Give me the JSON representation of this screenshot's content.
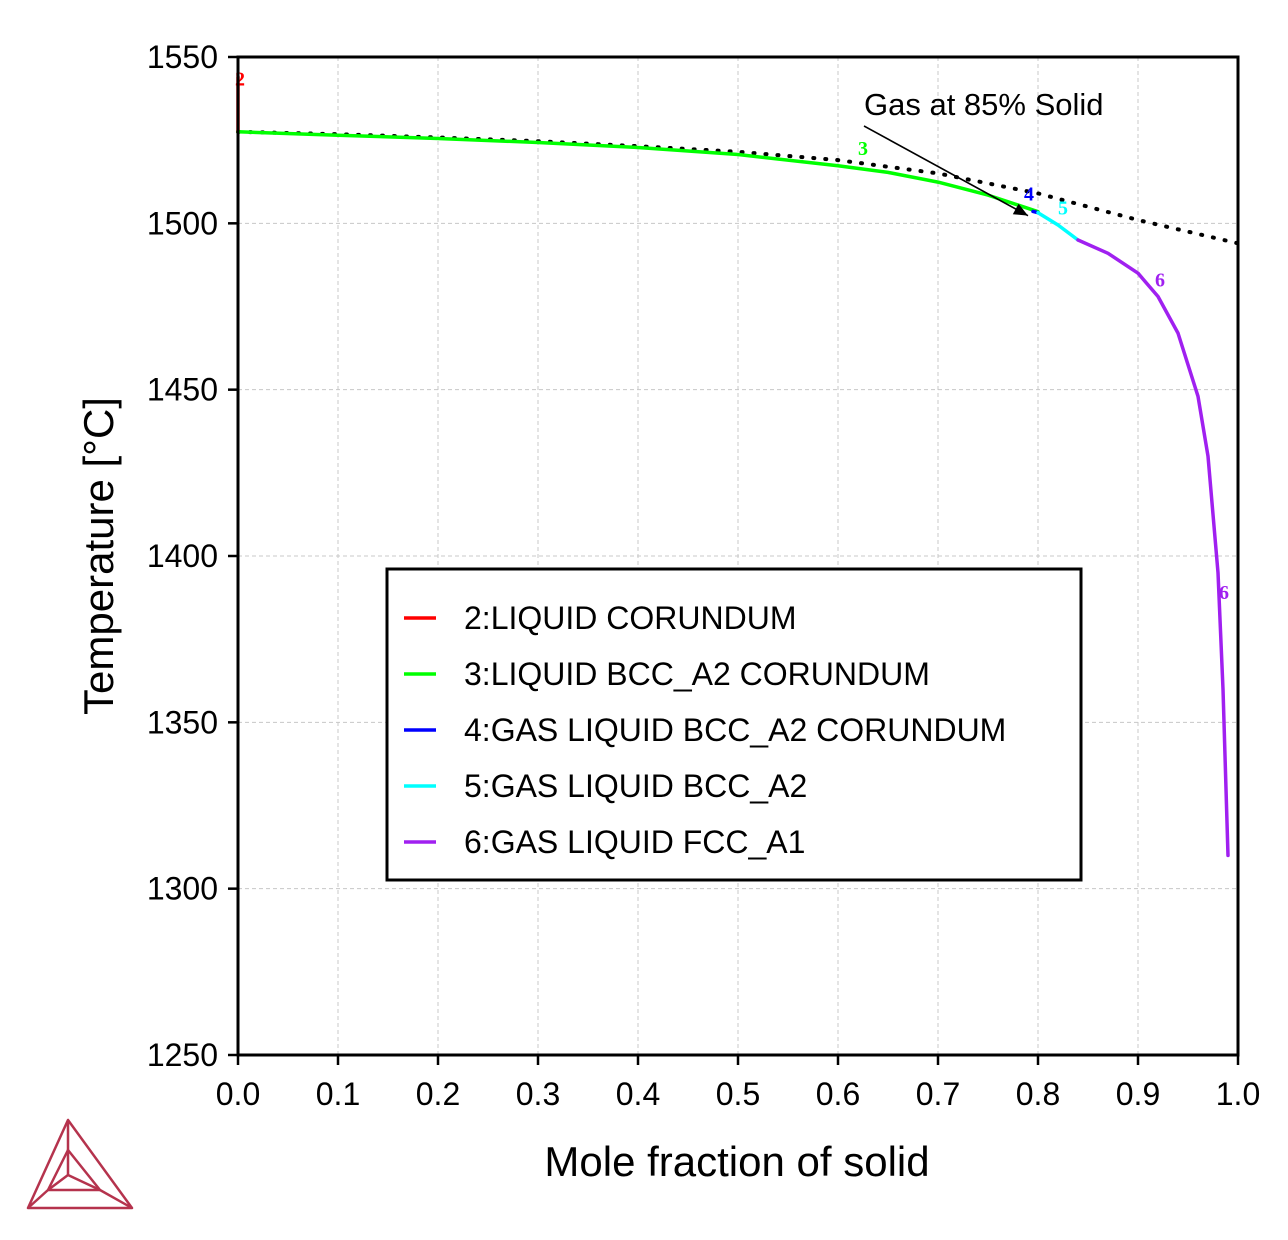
{
  "chart_data": {
    "type": "line",
    "xlabel": "Mole fraction of solid",
    "ylabel": "Temperature [°C]",
    "xlim": [
      0.0,
      1.0
    ],
    "ylim": [
      1250,
      1550
    ],
    "xticks": [
      "0.0",
      "0.1",
      "0.2",
      "0.3",
      "0.4",
      "0.5",
      "0.6",
      "0.7",
      "0.8",
      "0.9",
      "1.0"
    ],
    "yticks": [
      "1250",
      "1300",
      "1350",
      "1400",
      "1450",
      "1500",
      "1550"
    ],
    "grid": true,
    "legend_position": "lower-center",
    "annotation": {
      "text": "Gas at 85% Solid",
      "points_to": [
        0.79,
        1502.3
      ]
    },
    "series": [
      {
        "name": "2:LIQUID CORUNDUM",
        "color": "#ff0000",
        "label": "2",
        "points": [
          [
            0.0,
            1527.5
          ],
          [
            0.0,
            1544.0
          ]
        ]
      },
      {
        "name": "3:LIQUID BCC_A2 CORUNDUM",
        "color": "#00ff00",
        "label": "3",
        "points": [
          [
            0.0,
            1527.5
          ],
          [
            0.1,
            1526.5
          ],
          [
            0.2,
            1525.5
          ],
          [
            0.3,
            1524.3
          ],
          [
            0.4,
            1522.8
          ],
          [
            0.5,
            1520.7
          ],
          [
            0.6,
            1517.3
          ],
          [
            0.65,
            1515.3
          ],
          [
            0.7,
            1512.4
          ],
          [
            0.75,
            1508.5
          ],
          [
            0.8,
            1503.5
          ]
        ]
      },
      {
        "name": "4:GAS LIQUID BCC_A2 CORUNDUM",
        "color": "#0000ff",
        "label": "4",
        "points": [
          [
            0.795,
            1503.6
          ],
          [
            0.8,
            1503.2
          ]
        ]
      },
      {
        "name": "5:GAS LIQUID BCC_A2",
        "color": "#00ffff",
        "label": "5",
        "points": [
          [
            0.8,
            1503.2
          ],
          [
            0.82,
            1499.5
          ],
          [
            0.84,
            1495.0
          ]
        ]
      },
      {
        "name": "6:GAS LIQUID FCC_A1",
        "color": "#a020f0",
        "label": "6",
        "points": [
          [
            0.84,
            1495.0
          ],
          [
            0.87,
            1491.0
          ],
          [
            0.9,
            1485.0
          ],
          [
            0.92,
            1478.0
          ],
          [
            0.94,
            1467.0
          ],
          [
            0.96,
            1448.0
          ],
          [
            0.97,
            1430.0
          ],
          [
            0.98,
            1395.0
          ],
          [
            0.985,
            1360.0
          ],
          [
            0.99,
            1310.0
          ]
        ]
      },
      {
        "name": "",
        "color": "#000000",
        "style": "dotted",
        "points": [
          [
            0.0,
            1527.5
          ],
          [
            0.1,
            1526.8
          ],
          [
            0.2,
            1525.8
          ],
          [
            0.3,
            1524.7
          ],
          [
            0.4,
            1523.2
          ],
          [
            0.5,
            1521.5
          ],
          [
            0.6,
            1519.0
          ],
          [
            0.7,
            1515.0
          ],
          [
            0.8,
            1509.0
          ],
          [
            0.9,
            1501.0
          ],
          [
            1.0,
            1494.0
          ]
        ]
      }
    ]
  }
}
